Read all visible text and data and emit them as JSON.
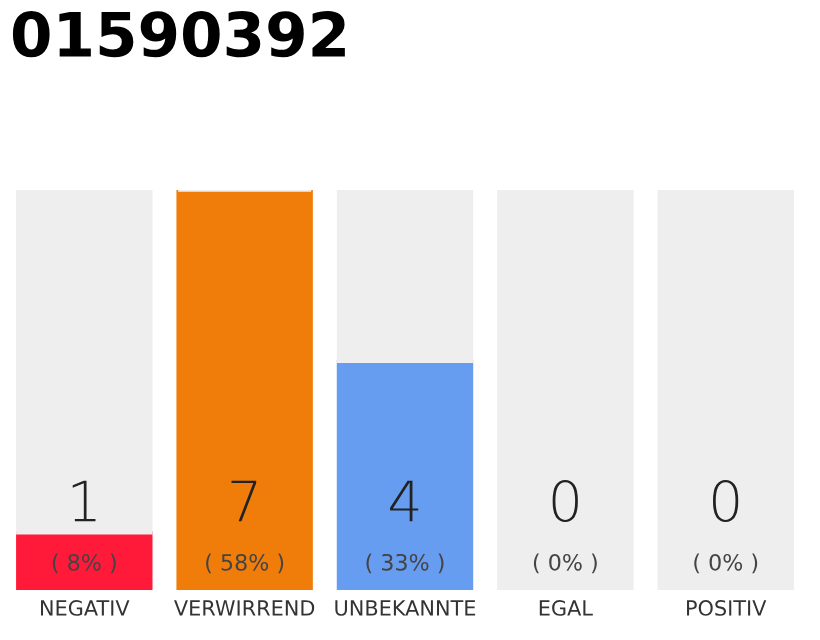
{
  "chart_data": {
    "type": "bar",
    "title": "01590392",
    "stacked": true,
    "categories": [
      "NEGATIV",
      "VERWIRREND",
      "UNBEKANNTE",
      "EGAL",
      "POSITIV"
    ],
    "series": [
      {
        "colors": [
          "#ff1a3a",
          "#f07d0a",
          "#669df0",
          "#7cc46a",
          "#22a050"
        ],
        "values": [
          1,
          7,
          4,
          0,
          0
        ],
        "value_labels": [
          "1",
          "7",
          "4",
          "0",
          "0"
        ]
      },
      {
        "color": "#eeeeee",
        "values": [
          6,
          0,
          3,
          7,
          7
        ]
      }
    ],
    "annotations": [
      "( 8% )",
      "( 58% )",
      "( 33% )",
      "( 0% )",
      "( 0% )"
    ],
    "grid": false,
    "legend": false,
    "tick_labels": "x"
  }
}
